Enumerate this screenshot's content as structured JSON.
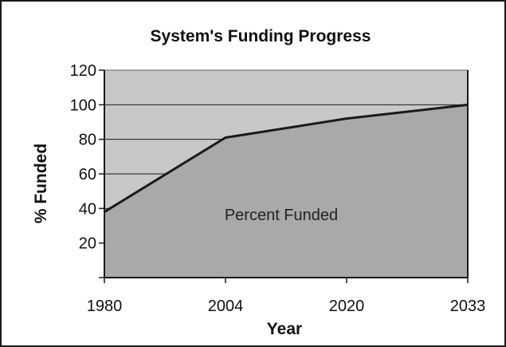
{
  "chart_data": {
    "type": "area",
    "title": "System's Funding Progress",
    "xlabel": "Year",
    "ylabel": "% Funded",
    "categories": [
      "1980",
      "2004",
      "2020",
      "2033"
    ],
    "series": [
      {
        "name": "Percent Funded",
        "values": [
          38,
          81,
          92,
          100
        ]
      }
    ],
    "yticks": [
      20,
      40,
      60,
      80,
      100,
      120
    ],
    "ylim": [
      0,
      120
    ],
    "grid": true,
    "legend": "none",
    "colors": {
      "plot_background": "#c8c8c8",
      "area_fill": "#a9a9a9",
      "line": "#1a1a1a",
      "gridline": "#1a1a1a"
    },
    "annotations": [
      "Percent Funded"
    ]
  }
}
